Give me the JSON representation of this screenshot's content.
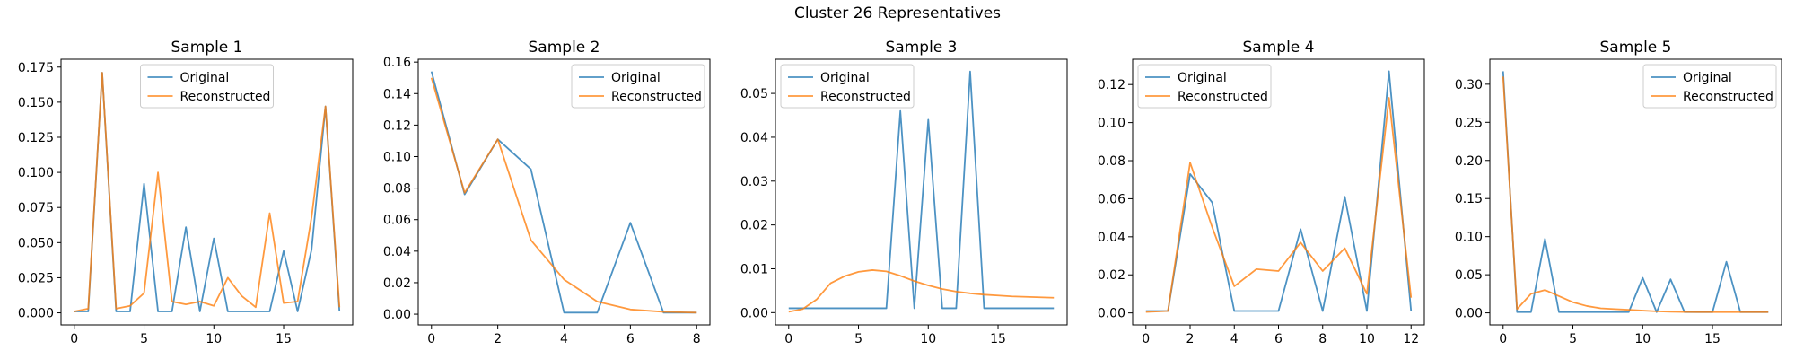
{
  "figure": {
    "suptitle": "Cluster 26 Representatives"
  },
  "colors": {
    "original": "#1f77b4",
    "reconstructed": "#ff7f0e"
  },
  "chart_data": [
    {
      "type": "line",
      "title": "Sample 1",
      "xlabel": "",
      "ylabel": "",
      "xlim": [
        -0.95,
        19.95
      ],
      "ylim": [
        -0.0086,
        0.1806
      ],
      "xticks": [
        0,
        5,
        10,
        15
      ],
      "yticks": [
        0.0,
        0.025,
        0.05,
        0.075,
        0.1,
        0.125,
        0.15,
        0.175
      ],
      "ytick_decimals": 3,
      "legend_position": "upper center",
      "x": [
        0,
        1,
        2,
        3,
        4,
        5,
        6,
        7,
        8,
        9,
        10,
        11,
        12,
        13,
        14,
        15,
        16,
        17,
        18,
        19
      ],
      "series": [
        {
          "name": "Original",
          "values": [
            0.001,
            0.001,
            0.171,
            0.001,
            0.001,
            0.092,
            0.001,
            0.001,
            0.061,
            0.001,
            0.053,
            0.001,
            0.001,
            0.001,
            0.001,
            0.044,
            0.001,
            0.045,
            0.147,
            0.001
          ]
        },
        {
          "name": "Reconstructed",
          "values": [
            0.001,
            0.003,
            0.171,
            0.003,
            0.005,
            0.014,
            0.1,
            0.008,
            0.006,
            0.008,
            0.005,
            0.025,
            0.012,
            0.004,
            0.071,
            0.007,
            0.008,
            0.068,
            0.147,
            0.004
          ]
        }
      ]
    },
    {
      "type": "line",
      "title": "Sample 2",
      "xlabel": "",
      "ylabel": "",
      "xlim": [
        -0.4,
        8.4
      ],
      "ylim": [
        -0.0068,
        0.1618
      ],
      "xticks": [
        0,
        2,
        4,
        6,
        8
      ],
      "yticks": [
        0.0,
        0.02,
        0.04,
        0.06,
        0.08,
        0.1,
        0.12,
        0.14,
        0.16
      ],
      "ytick_decimals": 2,
      "legend_position": "upper right",
      "x": [
        0,
        1,
        2,
        3,
        4,
        5,
        6,
        7,
        8
      ],
      "series": [
        {
          "name": "Original",
          "values": [
            0.154,
            0.076,
            0.111,
            0.092,
            0.001,
            0.001,
            0.058,
            0.001,
            0.001
          ]
        },
        {
          "name": "Reconstructed",
          "values": [
            0.15,
            0.077,
            0.111,
            0.047,
            0.022,
            0.008,
            0.003,
            0.0015,
            0.001
          ]
        }
      ]
    },
    {
      "type": "line",
      "title": "Sample 3",
      "xlabel": "",
      "ylabel": "",
      "xlim": [
        -0.95,
        19.95
      ],
      "ylim": [
        -0.0028,
        0.0578
      ],
      "xticks": [
        0,
        5,
        10,
        15
      ],
      "yticks": [
        0.0,
        0.01,
        0.02,
        0.03,
        0.04,
        0.05
      ],
      "ytick_decimals": 2,
      "legend_position": "upper left",
      "x": [
        0,
        1,
        2,
        3,
        4,
        5,
        6,
        7,
        8,
        9,
        10,
        11,
        12,
        13,
        14,
        15,
        16,
        17,
        18,
        19
      ],
      "series": [
        {
          "name": "Original",
          "values": [
            0.001,
            0.001,
            0.001,
            0.001,
            0.001,
            0.001,
            0.001,
            0.001,
            0.046,
            0.001,
            0.044,
            0.001,
            0.001,
            0.055,
            0.001,
            0.001,
            0.001,
            0.001,
            0.001,
            0.001
          ]
        },
        {
          "name": "Reconstructed",
          "values": [
            0.0002,
            0.0008,
            0.003,
            0.0067,
            0.0083,
            0.0093,
            0.0097,
            0.0094,
            0.0084,
            0.0072,
            0.0062,
            0.0054,
            0.0048,
            0.0044,
            0.0041,
            0.0039,
            0.0037,
            0.0036,
            0.0035,
            0.0034
          ]
        }
      ]
    },
    {
      "type": "line",
      "title": "Sample 4",
      "xlabel": "",
      "ylabel": "",
      "xlim": [
        -0.6,
        12.6
      ],
      "ylim": [
        -0.0063,
        0.1333
      ],
      "xticks": [
        0,
        2,
        4,
        6,
        8,
        10,
        12
      ],
      "yticks": [
        0.0,
        0.02,
        0.04,
        0.06,
        0.08,
        0.1,
        0.12
      ],
      "ytick_decimals": 2,
      "legend_position": "upper left",
      "x": [
        0,
        1,
        2,
        3,
        4,
        5,
        6,
        7,
        8,
        9,
        10,
        11,
        12
      ],
      "series": [
        {
          "name": "Original",
          "values": [
            0.001,
            0.001,
            0.073,
            0.058,
            0.001,
            0.001,
            0.001,
            0.044,
            0.001,
            0.061,
            0.001,
            0.127,
            0.001
          ]
        },
        {
          "name": "Reconstructed",
          "values": [
            0.0005,
            0.001,
            0.079,
            0.045,
            0.014,
            0.023,
            0.022,
            0.037,
            0.022,
            0.034,
            0.01,
            0.113,
            0.008
          ]
        }
      ]
    },
    {
      "type": "line",
      "title": "Sample 5",
      "xlabel": "",
      "ylabel": "",
      "xlim": [
        -0.95,
        19.95
      ],
      "ylim": [
        -0.0158,
        0.3328
      ],
      "xticks": [
        0,
        5,
        10,
        15
      ],
      "yticks": [
        0.0,
        0.05,
        0.1,
        0.15,
        0.2,
        0.25,
        0.3
      ],
      "ytick_decimals": 2,
      "legend_position": "upper right",
      "x": [
        0,
        1,
        2,
        3,
        4,
        5,
        6,
        7,
        8,
        9,
        10,
        11,
        12,
        13,
        14,
        15,
        16,
        17,
        18,
        19
      ],
      "series": [
        {
          "name": "Original",
          "values": [
            0.317,
            0.001,
            0.001,
            0.097,
            0.001,
            0.001,
            0.001,
            0.001,
            0.001,
            0.001,
            0.046,
            0.001,
            0.044,
            0.001,
            0.001,
            0.001,
            0.067,
            0.001,
            0.001,
            0.001
          ]
        },
        {
          "name": "Reconstructed",
          "values": [
            0.31,
            0.005,
            0.025,
            0.03,
            0.022,
            0.014,
            0.009,
            0.006,
            0.005,
            0.004,
            0.003,
            0.002,
            0.0015,
            0.0012,
            0.001,
            0.001,
            0.001,
            0.001,
            0.001,
            0.001
          ]
        }
      ]
    }
  ]
}
